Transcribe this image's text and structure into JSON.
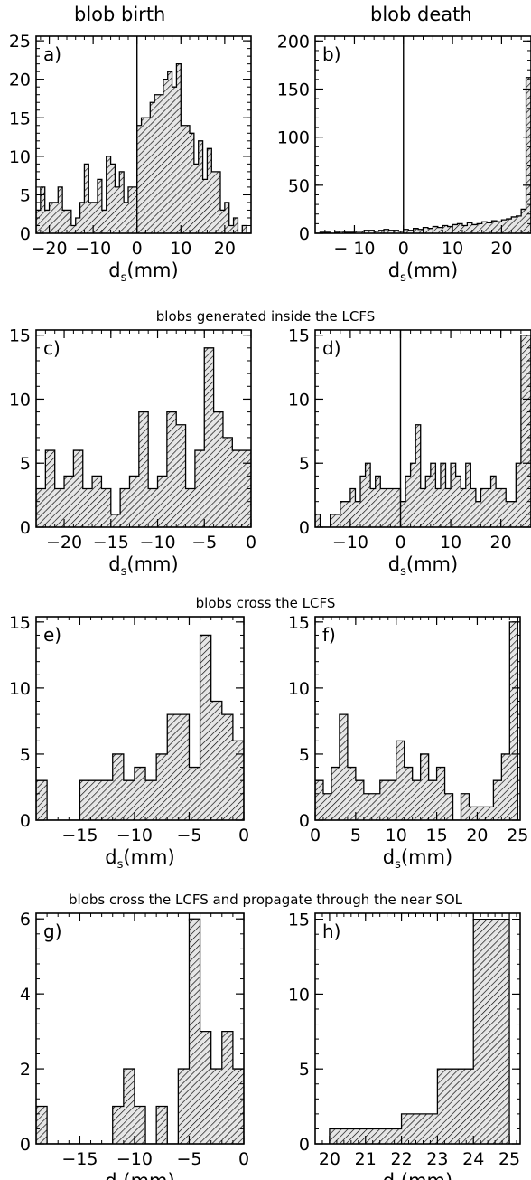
{
  "column_titles": [
    "blob birth",
    "blob death"
  ],
  "row_titles": [
    "blobs generated inside the LCFS",
    "blobs cross the LCFS",
    "blobs cross the LCFS and propagate through the near SOL"
  ],
  "colors": {
    "bar_fill": "#cfcfcf",
    "hatch": "#000000",
    "frame": "#000000"
  },
  "chart_data": [
    {
      "id": "a",
      "panel_label": "a)",
      "type": "bar",
      "xlabel_main": "d",
      "xlabel_sub": "s",
      "xlabel_unit": "(mm)",
      "ylabel": "",
      "xlim": [
        -23,
        26
      ],
      "ylim": [
        0,
        25.6
      ],
      "xticks": [
        -20,
        -10,
        0,
        10,
        20
      ],
      "xtick_labels": [
        "−20",
        "−10",
        "0",
        "10",
        "20"
      ],
      "yticks": [
        0,
        5,
        10,
        15,
        20,
        25
      ],
      "ytick_labels": [
        "0",
        "5",
        "10",
        "15",
        "20",
        "25"
      ],
      "vline": 0,
      "bin_width": 1,
      "bin_edges_start": -23,
      "values": [
        3,
        6,
        3,
        4,
        4,
        6,
        3,
        3,
        1,
        2,
        4,
        9,
        4,
        4,
        7,
        3,
        10,
        9,
        6,
        8,
        4,
        6,
        6,
        14,
        15,
        15,
        17,
        18,
        18,
        20,
        21,
        19,
        22,
        14,
        14,
        13,
        9,
        12,
        7,
        11,
        8,
        8,
        3,
        4,
        1,
        2,
        0,
        1,
        0
      ]
    },
    {
      "id": "b",
      "panel_label": "b)",
      "type": "bar",
      "xlabel_main": "d",
      "xlabel_sub": "s",
      "xlabel_unit": "(mm)",
      "ylabel": "",
      "xlim": [
        -18,
        26
      ],
      "ylim": [
        0,
        205
      ],
      "xticks": [
        -10,
        0,
        10,
        20
      ],
      "xtick_labels": [
        "− 10",
        "0",
        "10",
        "20"
      ],
      "yticks": [
        0,
        50,
        100,
        150,
        200
      ],
      "ytick_labels": [
        "0",
        "50",
        "100",
        "150",
        "200"
      ],
      "vline": 0,
      "bin_width": 1,
      "bin_edges_start": -18,
      "values": [
        0,
        1,
        1,
        0,
        1,
        2,
        1,
        1,
        2,
        2,
        3,
        3,
        2,
        3,
        4,
        3,
        3,
        2,
        4,
        3,
        5,
        4,
        6,
        5,
        7,
        6,
        8,
        7,
        9,
        10,
        8,
        11,
        9,
        10,
        12,
        11,
        13,
        12,
        14,
        15,
        17,
        18,
        25,
        162
      ]
    },
    {
      "id": "c",
      "panel_label": "c)",
      "type": "bar",
      "xlabel_main": "d",
      "xlabel_sub": "s",
      "xlabel_unit": "(mm)",
      "ylabel": "",
      "xlim": [
        -23,
        0
      ],
      "ylim": [
        0,
        15.4
      ],
      "xticks": [
        -20,
        -15,
        -10,
        -5,
        0
      ],
      "xtick_labels": [
        "−20",
        "−15",
        "−10",
        "−5",
        "0"
      ],
      "yticks": [
        0,
        5,
        10,
        15
      ],
      "ytick_labels": [
        "0",
        "5",
        "10",
        "15"
      ],
      "vline": null,
      "bin_width": 1,
      "bin_edges_start": -23,
      "values": [
        3,
        6,
        3,
        4,
        6,
        3,
        4,
        3,
        1,
        3,
        4,
        9,
        3,
        4,
        9,
        8,
        3,
        6,
        14,
        9,
        7,
        6,
        6
      ]
    },
    {
      "id": "d",
      "panel_label": "d)",
      "type": "bar",
      "xlabel_main": "d",
      "xlabel_sub": "s",
      "xlabel_unit": "(mm)",
      "ylabel": "",
      "xlim": [
        -17,
        26
      ],
      "ylim": [
        0,
        15.4
      ],
      "xticks": [
        -10,
        0,
        10,
        20
      ],
      "xtick_labels": [
        "−10",
        "0",
        "10",
        "20"
      ],
      "yticks": [
        0,
        5,
        10,
        15
      ],
      "ytick_labels": [
        "0",
        "5",
        "10",
        "15"
      ],
      "vline": 0,
      "bin_width": 1,
      "bin_edges_start": -17,
      "values": [
        1,
        0,
        0,
        1,
        1,
        2,
        2,
        3,
        2,
        4,
        5,
        3,
        4,
        3,
        3,
        3,
        3,
        2,
        4,
        5,
        8,
        3,
        4,
        5,
        3,
        5,
        3,
        5,
        4,
        3,
        5,
        3,
        2,
        3,
        3,
        4,
        3,
        3,
        2,
        2,
        5,
        15,
        15
      ]
    },
    {
      "id": "e",
      "panel_label": "e)",
      "type": "bar",
      "xlabel_main": "d",
      "xlabel_sub": "s",
      "xlabel_unit": "(mm)",
      "ylabel": "",
      "xlim": [
        -19,
        0
      ],
      "ylim": [
        0,
        15.4
      ],
      "xticks": [
        -15,
        -10,
        -5,
        0
      ],
      "xtick_labels": [
        "−15",
        "−10",
        "−5",
        "0"
      ],
      "yticks": [
        0,
        5,
        10,
        15
      ],
      "ytick_labels": [
        "0",
        "5",
        "10",
        "15"
      ],
      "vline": null,
      "bin_width": 1,
      "bin_edges_start": -19,
      "values": [
        3,
        0,
        0,
        0,
        3,
        3,
        3,
        5,
        3,
        4,
        3,
        5,
        8,
        8,
        4,
        14,
        9,
        8,
        6
      ]
    },
    {
      "id": "f",
      "panel_label": "f)",
      "type": "bar",
      "xlabel_main": "d",
      "xlabel_sub": "s",
      "xlabel_unit": "(mm)",
      "ylabel": "",
      "xlim": [
        0,
        25.3
      ],
      "ylim": [
        0,
        15.4
      ],
      "xticks": [
        0,
        5,
        10,
        15,
        20,
        25
      ],
      "xtick_labels": [
        "0",
        "5",
        "10",
        "15",
        "20",
        "25"
      ],
      "yticks": [
        0,
        5,
        10,
        15
      ],
      "ytick_labels": [
        "0",
        "5",
        "10",
        "15"
      ],
      "vline": null,
      "bin_width": 1,
      "bin_edges_start": 0,
      "values": [
        3,
        2,
        4,
        8,
        4,
        3,
        2,
        2,
        3,
        3,
        6,
        4,
        3,
        5,
        3,
        4,
        2,
        0,
        2,
        1,
        1,
        1,
        3,
        5,
        15
      ]
    },
    {
      "id": "g",
      "panel_label": "g)",
      "type": "bar",
      "xlabel_main": "d",
      "xlabel_sub": "s",
      "xlabel_unit": "(mm)",
      "ylabel": "",
      "xlim": [
        -19,
        0
      ],
      "ylim": [
        0,
        6.15
      ],
      "xticks": [
        -15,
        -10,
        -5,
        0
      ],
      "xtick_labels": [
        "−15",
        "−10",
        "−5",
        "0"
      ],
      "yticks": [
        0,
        2,
        4,
        6
      ],
      "ytick_labels": [
        "0",
        "2",
        "4",
        "6"
      ],
      "vline": null,
      "bin_width": 1,
      "bin_edges_start": -19,
      "values": [
        1,
        0,
        0,
        0,
        0,
        0,
        0,
        1,
        2,
        1,
        0,
        1,
        0,
        2,
        6,
        3,
        2,
        3,
        2
      ]
    },
    {
      "id": "h",
      "panel_label": "h)",
      "type": "bar",
      "xlabel_main": "d",
      "xlabel_sub": "s",
      "xlabel_unit": "(mm)",
      "ylabel": "",
      "xlim": [
        19.6,
        25.3
      ],
      "ylim": [
        0,
        15.4
      ],
      "xticks": [
        20,
        21,
        22,
        23,
        24,
        25
      ],
      "xtick_labels": [
        "20",
        "21",
        "22",
        "23",
        "24",
        "25"
      ],
      "yticks": [
        0,
        5,
        10,
        15
      ],
      "ytick_labels": [
        "0",
        "5",
        "10",
        "15"
      ],
      "vline": null,
      "bin_width": 1,
      "bin_edges_start": 20,
      "values": [
        1,
        1,
        2,
        5,
        15
      ]
    }
  ]
}
